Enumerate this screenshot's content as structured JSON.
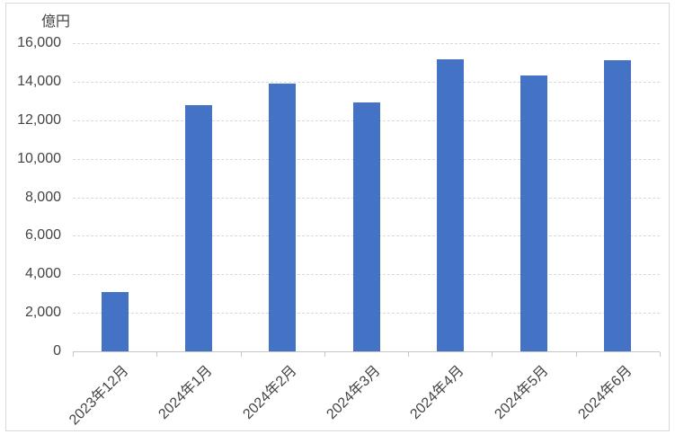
{
  "chart": {
    "y_axis_title": "億円"
  },
  "chart_data": {
    "type": "bar",
    "title": "",
    "xlabel": "",
    "ylabel": "億円",
    "categories": [
      "2023年12月",
      "2024年1月",
      "2024年2月",
      "2024年3月",
      "2024年4月",
      "2024年5月",
      "2024年6月"
    ],
    "values": [
      3100,
      12800,
      13900,
      12900,
      15150,
      14300,
      15100
    ],
    "ylim": [
      0,
      16000
    ],
    "ytick_interval": 2000,
    "ytick_labels": [
      "0",
      "2,000",
      "4,000",
      "6,000",
      "8,000",
      "10,000",
      "12,000",
      "14,000",
      "16,000"
    ],
    "grid": true,
    "legend": "none",
    "colors": {
      "bar": "#4472C4",
      "gridline": "#D9D9D9",
      "axis_line": "#C6C6C6",
      "text": "#444444",
      "border": "#D9D9D9",
      "background": "#FFFFFF"
    }
  }
}
